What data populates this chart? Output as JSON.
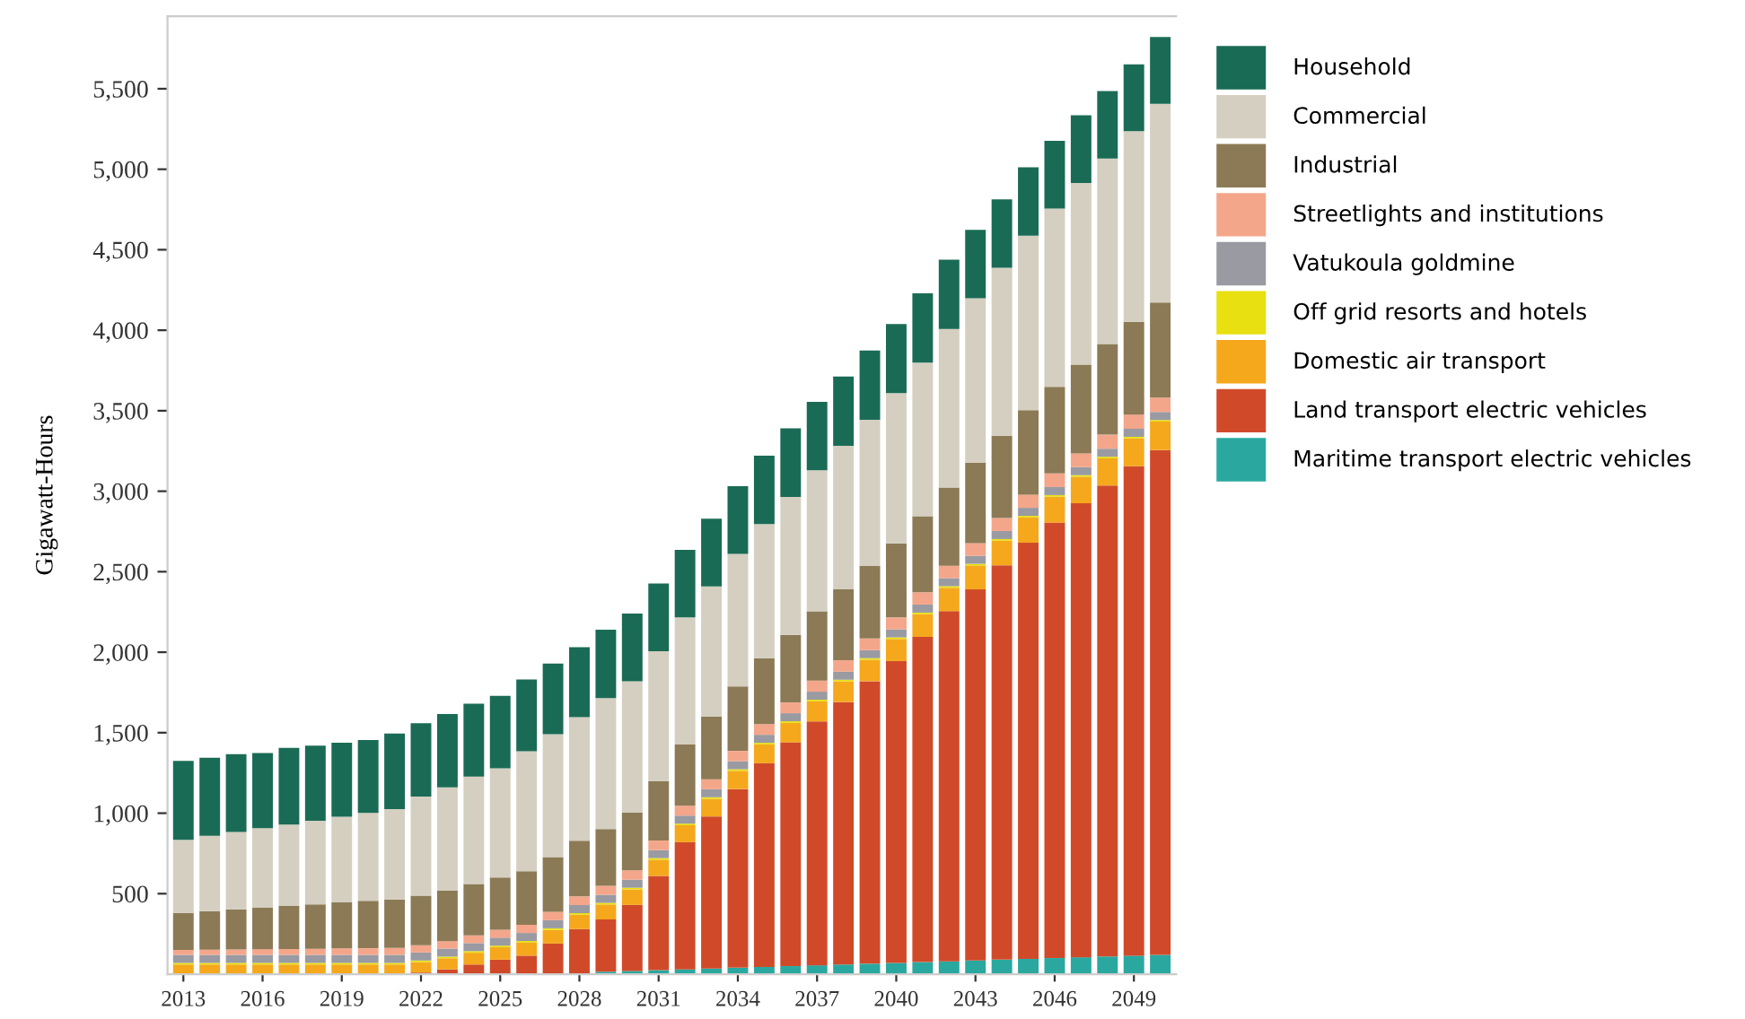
{
  "chart_data": {
    "type": "bar",
    "stacked": true,
    "ylabel": "Gigawatt-Hours",
    "categories": [
      "2013",
      null,
      null,
      "2016",
      null,
      null,
      "2019",
      null,
      null,
      "2022",
      null,
      null,
      "2025",
      null,
      null,
      "2028",
      null,
      null,
      "2031",
      null,
      null,
      "2034",
      null,
      null,
      "2037",
      null,
      null,
      "2040",
      null,
      null,
      "2043",
      null,
      null,
      "2046",
      null,
      null,
      "2049",
      null
    ],
    "series": [
      {
        "name": "Maritime transport electric vehicles",
        "color": "#2aa8a0",
        "values": [
          0,
          0,
          0,
          0,
          0,
          0,
          0,
          0,
          0,
          0,
          0,
          0,
          0,
          0,
          0,
          0,
          15,
          20,
          25,
          30,
          35,
          40,
          45,
          50,
          55,
          60,
          65,
          70,
          75,
          80,
          85,
          90,
          95,
          100,
          105,
          110,
          115,
          120
        ]
      },
      {
        "name": "Land transport electric vehicles",
        "color": "#d04a2a",
        "values": [
          0,
          0,
          0,
          0,
          0,
          0,
          0,
          0,
          0,
          10,
          30,
          60,
          90,
          115,
          190,
          280,
          325,
          410,
          585,
          790,
          945,
          1110,
          1265,
          1390,
          1515,
          1630,
          1755,
          1875,
          2020,
          2175,
          2305,
          2450,
          2585,
          2705,
          2820,
          2925,
          3040,
          3135
        ]
      },
      {
        "name": "Domestic air transport",
        "color": "#f5a81c",
        "values": [
          60,
          60,
          60,
          60,
          60,
          60,
          60,
          60,
          60,
          65,
          69,
          73,
          77,
          81,
          85,
          89,
          93,
          97,
          101,
          105,
          109,
          113,
          117,
          121,
          125,
          129,
          133,
          137,
          141,
          145,
          149,
          153,
          157,
          161,
          165,
          169,
          173,
          177
        ]
      },
      {
        "name": "Off grid resorts and hotels",
        "color": "#e8e010",
        "values": [
          10,
          10,
          10,
          10,
          10,
          10,
          10,
          10,
          10,
          10,
          10,
          10,
          10,
          10,
          10,
          10,
          10,
          10,
          10,
          10,
          10,
          10,
          10,
          10,
          10,
          10,
          10,
          10,
          10,
          10,
          10,
          10,
          10,
          10,
          10,
          10,
          10,
          10
        ]
      },
      {
        "name": "Vatukoula goldmine",
        "color": "#9a9aa2",
        "values": [
          50,
          50,
          50,
          50,
          50,
          50,
          50,
          50,
          50,
          50,
          50,
          50,
          50,
          50,
          50,
          50,
          50,
          50,
          50,
          50,
          50,
          50,
          50,
          50,
          50,
          50,
          50,
          50,
          50,
          50,
          50,
          50,
          50,
          50,
          50,
          50,
          50,
          50
        ]
      },
      {
        "name": "Streetlights and institutions",
        "color": "#f4a68a",
        "values": [
          30,
          32,
          33,
          35,
          36,
          38,
          40,
          41,
          43,
          45,
          46,
          48,
          49,
          51,
          53,
          54,
          56,
          58,
          59,
          61,
          62,
          64,
          66,
          67,
          69,
          71,
          72,
          74,
          76,
          77,
          79,
          80,
          82,
          84,
          85,
          87,
          88,
          90
        ]
      },
      {
        "name": "Industrial",
        "color": "#8b7a55",
        "values": [
          230,
          239,
          249,
          258,
          267,
          276,
          286,
          295,
          301,
          307,
          313,
          319,
          325,
          332,
          339,
          346,
          353,
          360,
          370,
          380,
          390,
          400,
          410,
          420,
          430,
          440,
          450,
          460,
          473,
          486,
          499,
          512,
          525,
          538,
          551,
          564,
          577,
          590
        ]
      },
      {
        "name": "Commercial",
        "color": "#d4cfc0",
        "values": [
          455,
          468,
          481,
          494,
          506,
          519,
          532,
          545,
          561,
          617,
          643,
          668,
          678,
          746,
          763,
          767,
          813,
          815,
          806,
          790,
          808,
          824,
          833,
          857,
          876,
          892,
          909,
          933,
          954,
          985,
          1022,
          1043,
          1083,
          1108,
          1129,
          1151,
          1184,
          1234
        ]
      },
      {
        "name": "Household",
        "color": "#1a6b55",
        "values": [
          490,
          486,
          483,
          467,
          477,
          466,
          460,
          453,
          470,
          455,
          455,
          452,
          450,
          445,
          440,
          435,
          425,
          420,
          420,
          420,
          420,
          420,
          425,
          425,
          425,
          430,
          430,
          430,
          430,
          430,
          425,
          425,
          425,
          420,
          420,
          420,
          415,
          415
        ]
      }
    ],
    "ylim": [
      0,
      5950
    ],
    "yticks": [
      {
        "value": 500,
        "label": "500"
      },
      {
        "value": 1000,
        "label": "1,000"
      },
      {
        "value": 1500,
        "label": "1,500"
      },
      {
        "value": 2000,
        "label": "2,000"
      },
      {
        "value": 2500,
        "label": "2,500"
      },
      {
        "value": 3000,
        "label": "3,000"
      },
      {
        "value": 3500,
        "label": "3,500"
      },
      {
        "value": 4000,
        "label": "4,000"
      },
      {
        "value": 4500,
        "label": "4,500"
      },
      {
        "value": 5000,
        "label": "5,000"
      },
      {
        "value": 5500,
        "label": "5,500"
      }
    ],
    "grid": false,
    "legend": "right"
  }
}
